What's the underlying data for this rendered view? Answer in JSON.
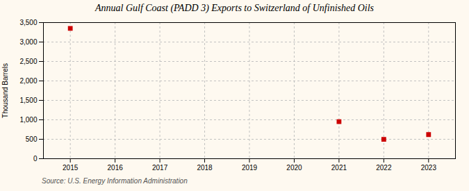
{
  "chart_data": {
    "type": "scatter",
    "title": "Annual Gulf Coast (PADD 3) Exports to Switzerland of Unfinished Oils",
    "ylabel": "Thousand Barrels",
    "annotations": [
      "Source: U.S. Energy Information Administration"
    ],
    "x": [
      2015,
      2021,
      2022,
      2023
    ],
    "values": [
      3352,
      953,
      497,
      621
    ],
    "color": "#cc0000",
    "marker": "square",
    "xlim": [
      2014.4,
      2023.6
    ],
    "xticks": [
      2015,
      2016,
      2017,
      2018,
      2019,
      2020,
      2021,
      2022,
      2023
    ],
    "ylim": [
      0,
      3500
    ],
    "yticks": [
      0,
      500,
      {
        "value": 1000,
        "label": "1,000"
      },
      {
        "value": 1500,
        "label": "1,500"
      },
      {
        "value": 2000,
        "label": "2,000"
      },
      {
        "value": 2500,
        "label": "2,500"
      },
      {
        "value": 3000,
        "label": "3,000"
      },
      {
        "value": 3500,
        "label": "3,500"
      }
    ],
    "grid": true
  }
}
